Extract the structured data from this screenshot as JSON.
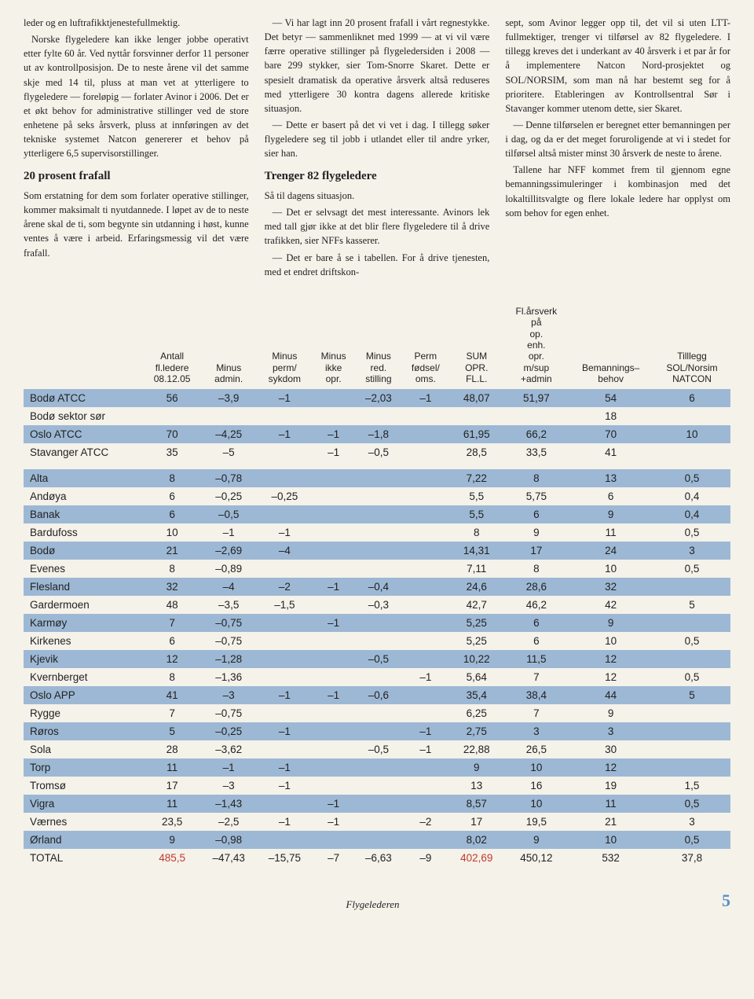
{
  "article": {
    "col1": {
      "p1": "leder og en luftrafikktjenestefullmektig.",
      "p2": "Norske flygeledere kan ikke lenger jobbe operativt etter fylte 60 år. Ved nyttår forsvinner derfor 11 personer ut av kontrollposisjon. De to neste årene vil det samme skje med 14 til, pluss at man vet at ytterligere to flygeledere — foreløpig — forlater Avinor i 2006. Det er et økt behov for administrative stillinger ved de store enhetene på seks årsverk, pluss at innføringen av det tekniske systemet Natcon genererer et behov på ytterligere 6,5 supervisorstillinger.",
      "h1": "20 prosent frafall",
      "p3": "Som erstatning for dem som forlater operative stillinger, kommer maksimalt ti nyutdannede. I løpet av de to neste årene skal de ti, som begynte sin utdanning i høst, kunne ventes å være i arbeid. Erfaringsmessig vil det være frafall."
    },
    "col2": {
      "p1": "— Vi har lagt inn 20 prosent frafall i vårt regnestykke. Det betyr — sammenliknet med 1999 — at vi vil være færre operative stillinger på flygeledersiden i 2008 — bare 299 stykker, sier Tom-Snorre Skaret. Dette er spesielt dramatisk da operative årsverk altså reduseres med ytterligere 30 kontra dagens allerede kritiske situasjon.",
      "p2": "— Dette er basert på det vi vet i dag. I tillegg søker flygeledere seg til jobb i utlandet eller til andre yrker, sier han.",
      "h1": "Trenger 82 flygeledere",
      "p3": "Så til dagens situasjon.",
      "p4": "— Det er selvsagt det mest interessante. Avinors lek med tall gjør ikke at det blir flere flygeledere til å drive trafikken, sier NFFs kasserer.",
      "p5": "— Det er bare å se i tabellen. For å drive tjenesten, med et endret driftskon-"
    },
    "col3": {
      "p1": "sept, som Avinor legger opp til, det vil si uten LTT-fullmektiger, trenger vi tilførsel av 82 flygeledere. I tillegg kreves det i underkant av 40 årsverk i et par år for å implementere Natcon Nord-prosjektet og SOL/NORSIM, som man nå har bestemt seg for å prioritere. Etableringen av Kontrollsentral Sør i Stavanger kommer utenom dette, sier Skaret.",
      "p2": "— Denne tilførselen er beregnet etter bemanningen per i dag, og da er det meget foruroligende at vi i stedet for tilførsel altså mister minst 30 årsverk de neste to årene.",
      "p3": "Tallene har NFF kommet frem til gjennom egne bemanningssimuleringer i kombinasjon med det lokaltillitsvalgte og flere lokale ledere har opplyst om som behov for egen enhet."
    }
  },
  "table": {
    "headers": [
      "",
      "Antall fl.ledere 08.12.05",
      "Minus admin.",
      "Minus perm/ sykdom",
      "Minus ikke opr.",
      "Minus red. stilling",
      "Perm fødsel/ oms.",
      "SUM OPR. FL.L.",
      "Fl.årsverk på op. enh. opr. m/sup +admin",
      "Bemannings– behov",
      "Tilllegg SOL/Norsim NATCON"
    ],
    "section1": [
      {
        "name": "Bodø ATCC",
        "v": [
          "56",
          "–3,9",
          "–1",
          "",
          "–2,03",
          "–1",
          "48,07",
          "51,97",
          "54",
          "6"
        ],
        "blue": true
      },
      {
        "name": "Bodø sektor sør",
        "v": [
          "",
          "",
          "",
          "",
          "",
          "",
          "",
          "",
          "18",
          ""
        ],
        "blue": false
      },
      {
        "name": "Oslo ATCC",
        "v": [
          "70",
          "–4,25",
          "–1",
          "–1",
          "–1,8",
          "",
          "61,95",
          "66,2",
          "70",
          "10"
        ],
        "blue": true
      },
      {
        "name": "Stavanger ATCC",
        "v": [
          "35",
          "–5",
          "",
          "–1",
          "–0,5",
          "",
          "28,5",
          "33,5",
          "41",
          ""
        ],
        "blue": false
      }
    ],
    "section2": [
      {
        "name": "Alta",
        "v": [
          "8",
          "–0,78",
          "",
          "",
          "",
          "",
          "7,22",
          "8",
          "13",
          "0,5"
        ],
        "blue": true
      },
      {
        "name": "Andøya",
        "v": [
          "6",
          "–0,25",
          "–0,25",
          "",
          "",
          "",
          "5,5",
          "5,75",
          "6",
          "0,4"
        ],
        "blue": false
      },
      {
        "name": "Banak",
        "v": [
          "6",
          "–0,5",
          "",
          "",
          "",
          "",
          "5,5",
          "6",
          "9",
          "0,4"
        ],
        "blue": true
      },
      {
        "name": "Bardufoss",
        "v": [
          "10",
          "–1",
          "–1",
          "",
          "",
          "",
          "8",
          "9",
          "11",
          "0,5"
        ],
        "blue": false
      },
      {
        "name": "Bodø",
        "v": [
          "21",
          "–2,69",
          "–4",
          "",
          "",
          "",
          "14,31",
          "17",
          "24",
          "3"
        ],
        "blue": true
      },
      {
        "name": "Evenes",
        "v": [
          "8",
          "–0,89",
          "",
          "",
          "",
          "",
          "7,11",
          "8",
          "10",
          "0,5"
        ],
        "blue": false
      },
      {
        "name": "Flesland",
        "v": [
          "32",
          "–4",
          "–2",
          "–1",
          "–0,4",
          "",
          "24,6",
          "28,6",
          "32",
          ""
        ],
        "blue": true
      },
      {
        "name": "Gardermoen",
        "v": [
          "48",
          "–3,5",
          "–1,5",
          "",
          "–0,3",
          "",
          "42,7",
          "46,2",
          "42",
          "5"
        ],
        "blue": false
      },
      {
        "name": "Karmøy",
        "v": [
          "7",
          "–0,75",
          "",
          "–1",
          "",
          "",
          "5,25",
          "6",
          "9",
          ""
        ],
        "blue": true
      },
      {
        "name": "Kirkenes",
        "v": [
          "6",
          "–0,75",
          "",
          "",
          "",
          "",
          "5,25",
          "6",
          "10",
          "0,5"
        ],
        "blue": false
      },
      {
        "name": "Kjevik",
        "v": [
          "12",
          "–1,28",
          "",
          "",
          "–0,5",
          "",
          "10,22",
          "11,5",
          "12",
          ""
        ],
        "blue": true
      },
      {
        "name": "Kvernberget",
        "v": [
          "8",
          "–1,36",
          "",
          "",
          "",
          "–1",
          "5,64",
          "7",
          "12",
          "0,5"
        ],
        "blue": false
      },
      {
        "name": "Oslo APP",
        "v": [
          "41",
          "–3",
          "–1",
          "–1",
          "–0,6",
          "",
          "35,4",
          "38,4",
          "44",
          "5"
        ],
        "blue": true
      },
      {
        "name": "Rygge",
        "v": [
          "7",
          "–0,75",
          "",
          "",
          "",
          "",
          "6,25",
          "7",
          "9",
          ""
        ],
        "blue": false
      },
      {
        "name": "Røros",
        "v": [
          "5",
          "–0,25",
          "–1",
          "",
          "",
          "–1",
          "2,75",
          "3",
          "3",
          ""
        ],
        "blue": true
      },
      {
        "name": "Sola",
        "v": [
          "28",
          "–3,62",
          "",
          "",
          "–0,5",
          "–1",
          "22,88",
          "26,5",
          "30",
          ""
        ],
        "blue": false
      },
      {
        "name": "Torp",
        "v": [
          "11",
          "–1",
          "–1",
          "",
          "",
          "",
          "9",
          "10",
          "12",
          ""
        ],
        "blue": true
      },
      {
        "name": "Tromsø",
        "v": [
          "17",
          "–3",
          "–1",
          "",
          "",
          "",
          "13",
          "16",
          "19",
          "1,5"
        ],
        "blue": false
      },
      {
        "name": "Vigra",
        "v": [
          "11",
          "–1,43",
          "",
          "–1",
          "",
          "",
          "8,57",
          "10",
          "11",
          "0,5"
        ],
        "blue": true
      },
      {
        "name": "Værnes",
        "v": [
          "23,5",
          "–2,5",
          "–1",
          "–1",
          "",
          "–2",
          "17",
          "19,5",
          "21",
          "3"
        ],
        "blue": false
      },
      {
        "name": "Ørland",
        "v": [
          "9",
          "–0,98",
          "",
          "",
          "",
          "",
          "8,02",
          "9",
          "10",
          "0,5"
        ],
        "blue": true
      }
    ],
    "total": {
      "name": "TOTAL",
      "v": [
        "485,5",
        "–47,43",
        "–15,75",
        "–7",
        "–6,63",
        "–9",
        "402,69",
        "450,12",
        "532",
        "37,8"
      ]
    }
  },
  "footer": {
    "label": "Flygelederen",
    "page": "5"
  },
  "colors": {
    "blueRow": "#9db8d4",
    "redText": "#c0392b",
    "pageNum": "#5a8fc7"
  }
}
